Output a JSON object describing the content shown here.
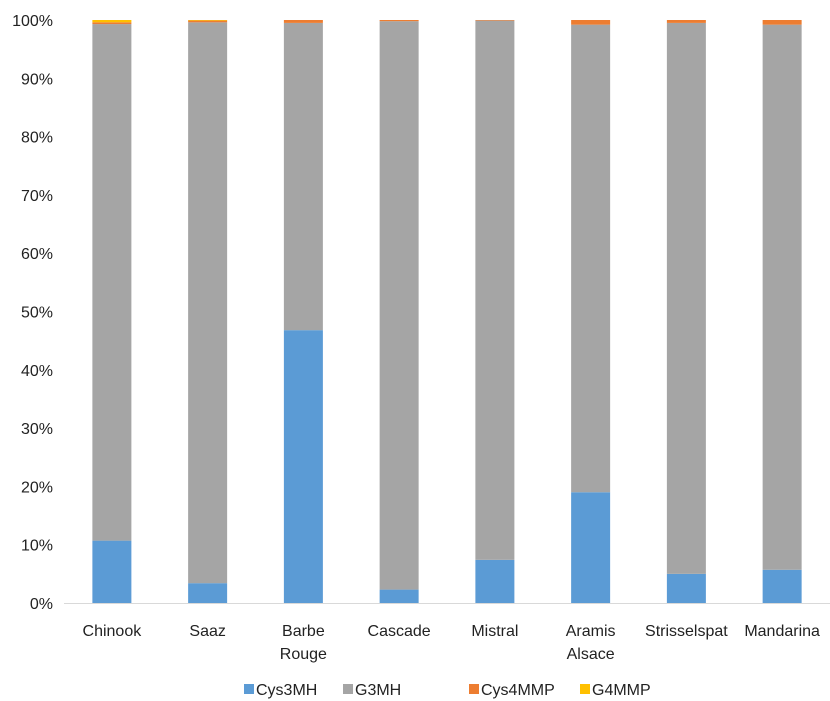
{
  "chart_data": {
    "type": "bar",
    "stacked": true,
    "percent": true,
    "categories": [
      [
        "Chinook"
      ],
      [
        "Saaz"
      ],
      [
        "Barbe",
        "Rouge"
      ],
      [
        "Cascade"
      ],
      [
        "Mistral"
      ],
      [
        "Aramis",
        "Alsace"
      ],
      [
        "Strisselspat"
      ],
      [
        "Mandarina"
      ]
    ],
    "series": [
      {
        "name": "Cys3MH",
        "color": "#5B9BD5",
        "values": [
          10.7,
          3.4,
          46.8,
          2.3,
          7.4,
          19.0,
          5.0,
          5.7
        ]
      },
      {
        "name": "G3MH",
        "color": "#A5A5A5",
        "values": [
          88.6,
          96.2,
          52.7,
          97.5,
          92.5,
          80.2,
          94.5,
          93.5
        ]
      },
      {
        "name": "Cys4MMP",
        "color": "#ED7D31",
        "values": [
          0.3,
          0.3,
          0.5,
          0.2,
          0.1,
          0.8,
          0.5,
          0.8
        ]
      },
      {
        "name": "G4MMP",
        "color": "#FFC000",
        "values": [
          0.4,
          0.1,
          0.0,
          0.0,
          0.0,
          0.0,
          0.0,
          0.0
        ]
      }
    ],
    "ylim": [
      0,
      100
    ],
    "yticks": [
      "0%",
      "10%",
      "20%",
      "30%",
      "40%",
      "50%",
      "60%",
      "70%",
      "80%",
      "90%",
      "100%"
    ],
    "grid": false,
    "legend_position": "bottom"
  }
}
